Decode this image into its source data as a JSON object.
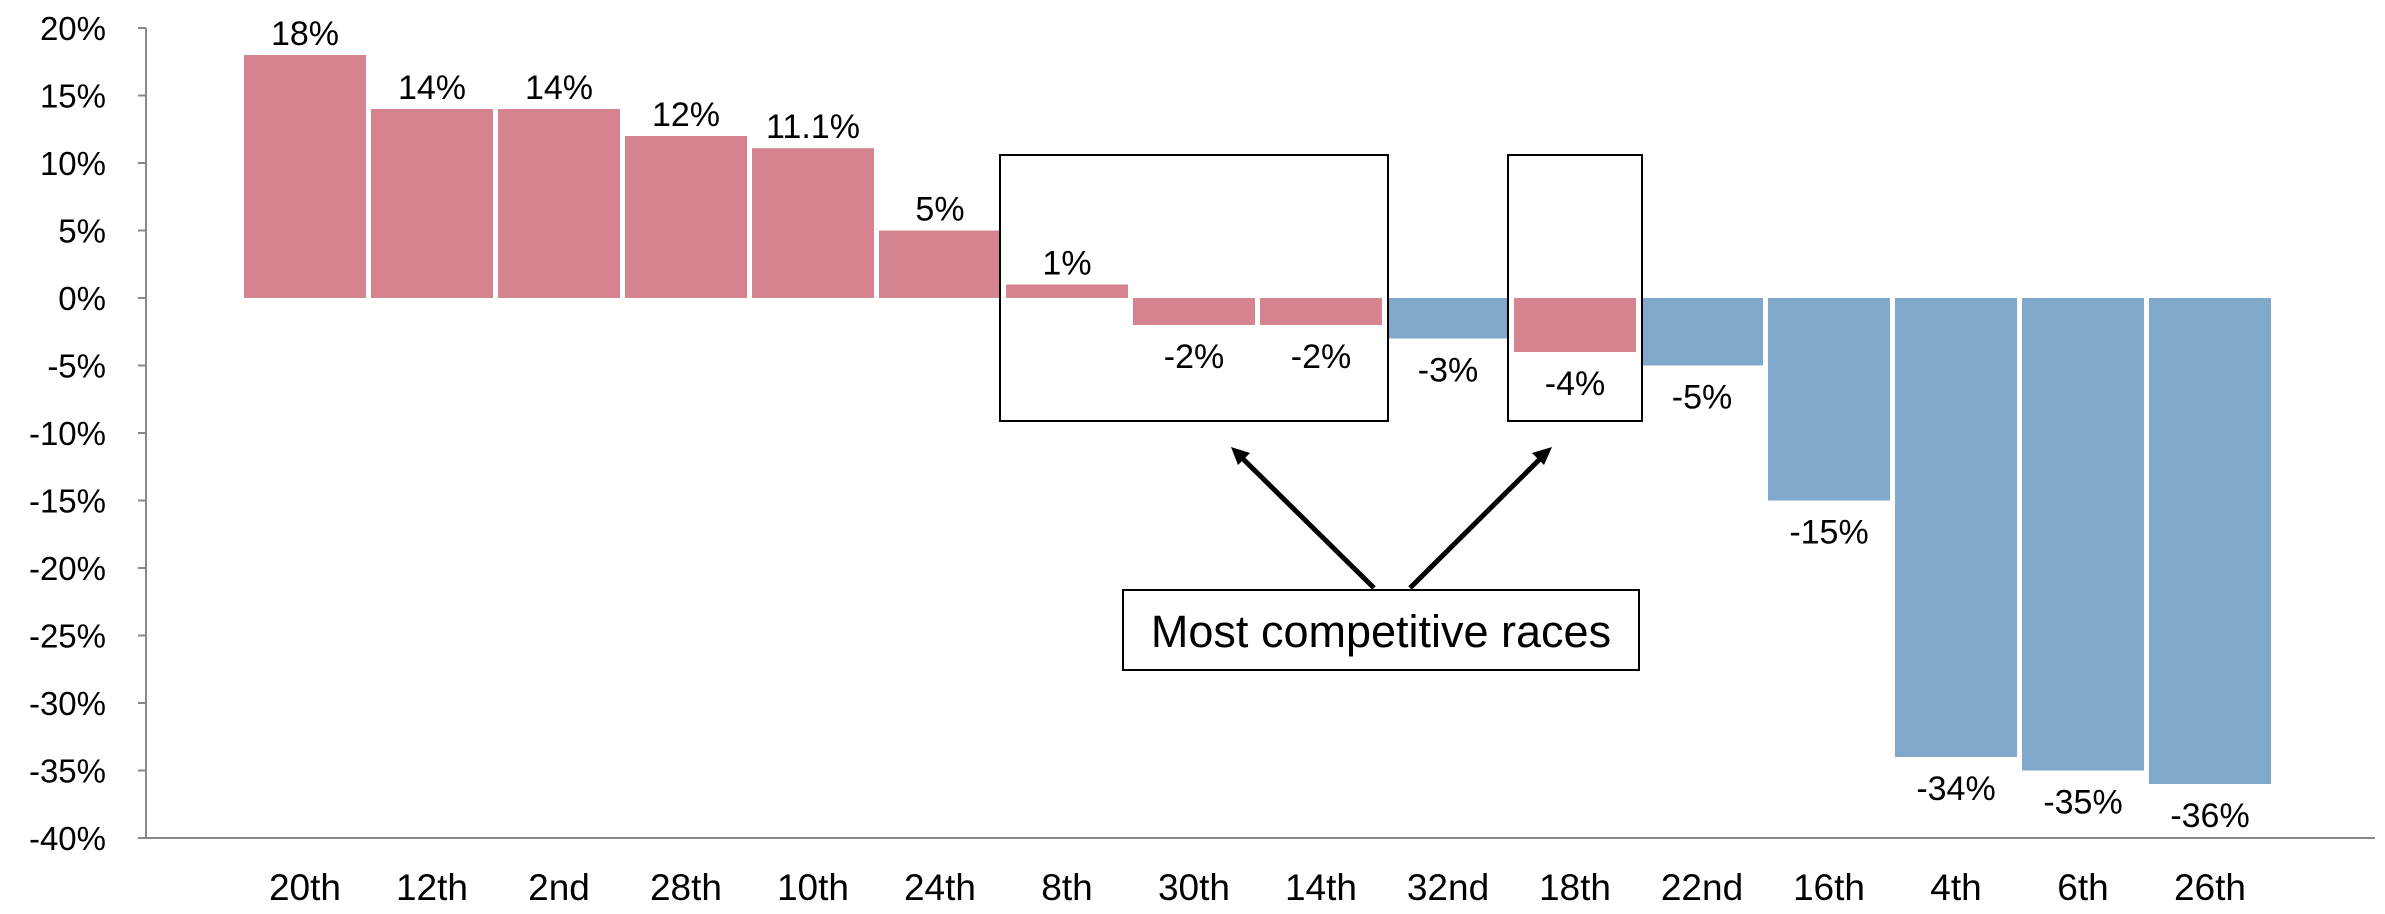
{
  "chart_data": {
    "type": "bar",
    "categories": [
      "20th",
      "12th",
      "2nd",
      "28th",
      "10th",
      "24th",
      "8th",
      "30th",
      "14th",
      "32nd",
      "18th",
      "22nd",
      "16th",
      "4th",
      "6th",
      "26th"
    ],
    "values": [
      18,
      14,
      14,
      12,
      11.1,
      5,
      1,
      -2,
      -2,
      -3,
      -4,
      -5,
      -15,
      -34,
      -35,
      -36
    ],
    "data_labels": [
      "18%",
      "14%",
      "14%",
      "12%",
      "11.1%",
      "5%",
      "1%",
      "-2%",
      "-2%",
      "-3%",
      "-4%",
      "-5%",
      "-15%",
      "-34%",
      "-35%",
      "-36%"
    ],
    "bar_colors": [
      "#d4838f",
      "#d4838f",
      "#d4838f",
      "#d4838f",
      "#d4838f",
      "#d4838f",
      "#d4838f",
      "#d4838f",
      "#d4838f",
      "#7fa8cb",
      "#d4838f",
      "#7fa8cb",
      "#7fa8cb",
      "#7fa8cb",
      "#7fa8cb",
      "#7fa8cb"
    ],
    "ylim": [
      -40,
      20
    ],
    "yticks": [
      20,
      15,
      10,
      5,
      0,
      -5,
      -10,
      -15,
      -20,
      -25,
      -30,
      -35,
      -40
    ],
    "ytick_labels": [
      "20%",
      "15%",
      "10%",
      "5%",
      "0%",
      "-5%",
      "-10%",
      "-15%",
      "-20%",
      "-25%",
      "-30%",
      "-35%",
      "-40%"
    ],
    "title": "",
    "xlabel": "",
    "ylabel": "",
    "grid": false,
    "annotation": {
      "text": "Most competitive races",
      "boxed_groups": [
        [
          "8th",
          "30th",
          "14th"
        ],
        [
          "18th"
        ]
      ]
    }
  }
}
